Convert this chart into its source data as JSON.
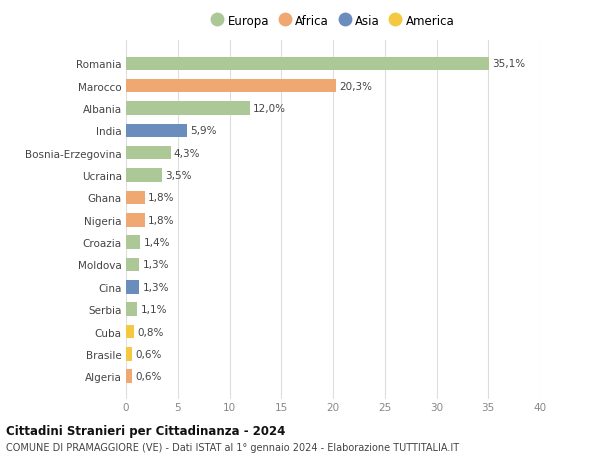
{
  "countries": [
    "Romania",
    "Marocco",
    "Albania",
    "India",
    "Bosnia-Erzegovina",
    "Ucraina",
    "Ghana",
    "Nigeria",
    "Croazia",
    "Moldova",
    "Cina",
    "Serbia",
    "Cuba",
    "Brasile",
    "Algeria"
  ],
  "values": [
    35.1,
    20.3,
    12.0,
    5.9,
    4.3,
    3.5,
    1.8,
    1.8,
    1.4,
    1.3,
    1.3,
    1.1,
    0.8,
    0.6,
    0.6
  ],
  "labels": [
    "35,1%",
    "20,3%",
    "12,0%",
    "5,9%",
    "4,3%",
    "3,5%",
    "1,8%",
    "1,8%",
    "1,4%",
    "1,3%",
    "1,3%",
    "1,1%",
    "0,8%",
    "0,6%",
    "0,6%"
  ],
  "continents": [
    "Europa",
    "Africa",
    "Europa",
    "Asia",
    "Europa",
    "Europa",
    "Africa",
    "Africa",
    "Europa",
    "Europa",
    "Asia",
    "Europa",
    "America",
    "America",
    "Africa"
  ],
  "colors": {
    "Europa": "#adc897",
    "Africa": "#f0a872",
    "Asia": "#6b8dbd",
    "America": "#f5c842"
  },
  "legend_order": [
    "Europa",
    "Africa",
    "Asia",
    "America"
  ],
  "legend_colors": [
    "#adc897",
    "#f0a872",
    "#6b8dbd",
    "#f5c842"
  ],
  "xlim": [
    0,
    40
  ],
  "xticks": [
    0,
    5,
    10,
    15,
    20,
    25,
    30,
    35,
    40
  ],
  "title": "Cittadini Stranieri per Cittadinanza - 2024",
  "subtitle": "COMUNE DI PRAMAGGIORE (VE) - Dati ISTAT al 1° gennaio 2024 - Elaborazione TUTTITALIA.IT",
  "bg_color": "#ffffff",
  "grid_color": "#dddddd",
  "bar_height": 0.6
}
